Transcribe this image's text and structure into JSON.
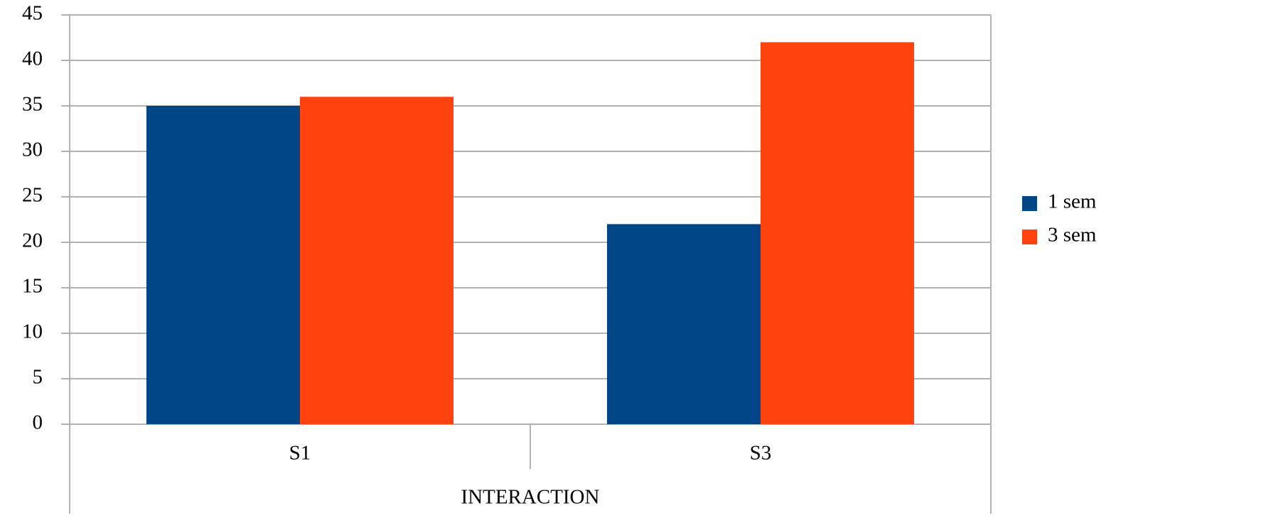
{
  "chart_data": {
    "type": "bar",
    "x_label": "INTERACTION",
    "categories": [
      "S1",
      "S3"
    ],
    "series": [
      {
        "name": "1 sem",
        "color": "#004586",
        "values": [
          35,
          22
        ]
      },
      {
        "name": "3 sem",
        "color": "#ff420e",
        "values": [
          36,
          42
        ]
      }
    ],
    "ylim": [
      0,
      45
    ],
    "yticks": [
      0,
      5,
      10,
      15,
      20,
      25,
      30,
      35,
      40,
      45
    ],
    "grid": true,
    "legend": "right"
  }
}
